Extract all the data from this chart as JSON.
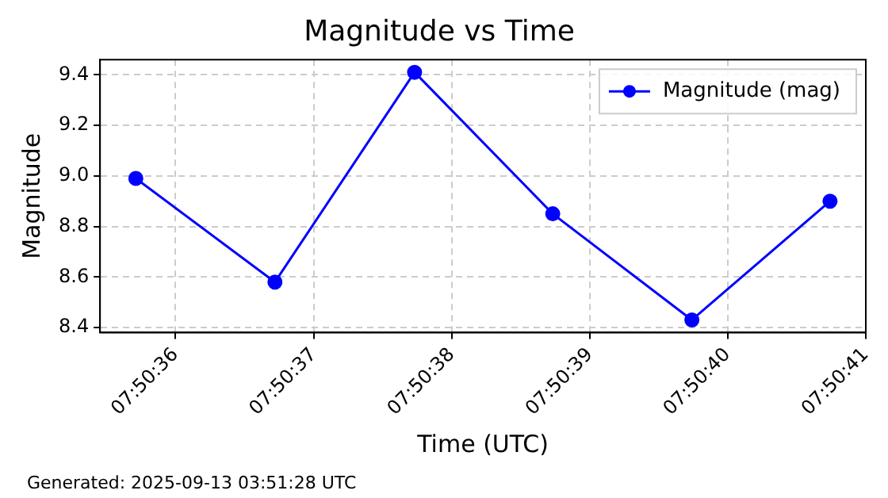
{
  "chart_data": {
    "type": "line",
    "title": "Magnitude vs Time",
    "xlabel": "Time (UTC)",
    "ylabel": "Magnitude",
    "x": [
      7.843253,
      7.843533,
      7.843814,
      7.844092,
      7.844372,
      7.84465
    ],
    "series": [
      {
        "name": "Magnitude (mag)",
        "color": "#0000ff",
        "values": [
          8.99,
          8.58,
          9.41,
          8.85,
          8.43,
          8.9
        ]
      }
    ],
    "xlim": [
      7.843181,
      7.844722
    ],
    "xticks": [
      {
        "value": 7.843333,
        "label": "07:50:36"
      },
      {
        "value": 7.843611,
        "label": "07:50:37"
      },
      {
        "value": 7.843889,
        "label": "07:50:38"
      },
      {
        "value": 7.844167,
        "label": "07:50:39"
      },
      {
        "value": 7.844444,
        "label": "07:50:40"
      },
      {
        "value": 7.844722,
        "label": "07:50:41"
      }
    ],
    "ylim": [
      8.38,
      9.46
    ],
    "yticks": [
      8.4,
      8.6,
      8.8,
      {
        "value": 9,
        "label": "9.0"
      },
      9.2,
      9.4
    ],
    "grid": true,
    "legend": "top right",
    "marker": "circle",
    "line_style": "solid",
    "annotations": [
      "Generated: 2025-09-13 03:51:28 UTC"
    ]
  }
}
